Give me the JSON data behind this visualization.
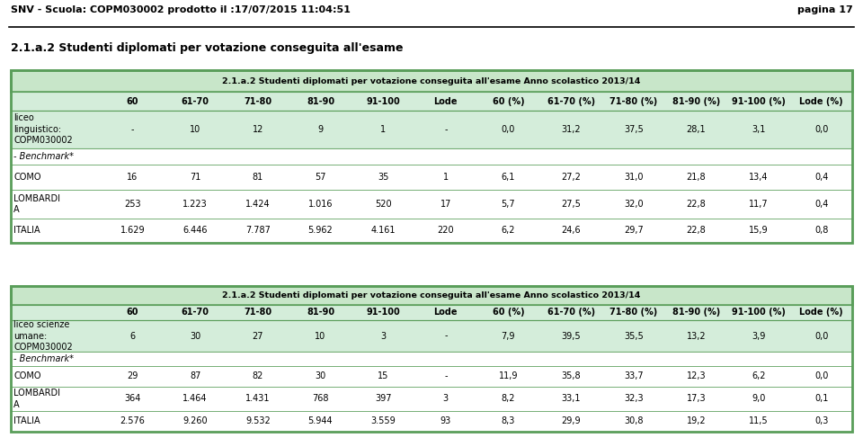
{
  "header_text": "SNV - Scuola: COPM030002 prodotto il :17/07/2015 11:04:51",
  "page_text": "pagina 17",
  "section_title": "2.1.a.2 Studenti diplomati per votazione conseguita all'esame",
  "table_title": "2.1.a.2 Studenti diplomati per votazione conseguita all'esame Anno scolastico 2013/14",
  "col_headers": [
    "60",
    "61-70",
    "71-80",
    "81-90",
    "91-100",
    "Lode",
    "60 (%)",
    "61-70 (%)",
    "71-80 (%)",
    "81-90 (%)",
    "91-100 (%)",
    "Lode (%)"
  ],
  "table1_rows": [
    {
      "label": "liceo\nlinguistico:\nCOPM030002",
      "values": [
        "-",
        "10",
        "12",
        "9",
        "1",
        "-",
        "0,0",
        "31,2",
        "37,5",
        "28,1",
        "3,1",
        "0,0"
      ],
      "type": "school"
    },
    {
      "label": "- Benchmark*",
      "values": [],
      "type": "benchmark"
    },
    {
      "label": "COMO",
      "values": [
        "16",
        "71",
        "81",
        "57",
        "35",
        "1",
        "6,1",
        "27,2",
        "31,0",
        "21,8",
        "13,4",
        "0,4"
      ],
      "type": "data"
    },
    {
      "label": "LOMBARDI\nA",
      "values": [
        "253",
        "1.223",
        "1.424",
        "1.016",
        "520",
        "17",
        "5,7",
        "27,5",
        "32,0",
        "22,8",
        "11,7",
        "0,4"
      ],
      "type": "data"
    },
    {
      "label": "ITALIA",
      "values": [
        "1.629",
        "6.446",
        "7.787",
        "5.962",
        "4.161",
        "220",
        "6,2",
        "24,6",
        "29,7",
        "22,8",
        "15,9",
        "0,8"
      ],
      "type": "data"
    }
  ],
  "table2_rows": [
    {
      "label": "liceo scienze\numane:\nCOPM030002",
      "values": [
        "6",
        "30",
        "27",
        "10",
        "3",
        "-",
        "7,9",
        "39,5",
        "35,5",
        "13,2",
        "3,9",
        "0,0"
      ],
      "type": "school"
    },
    {
      "label": "- Benchmark*",
      "values": [],
      "type": "benchmark"
    },
    {
      "label": "COMO",
      "values": [
        "29",
        "87",
        "82",
        "30",
        "15",
        "-",
        "11,9",
        "35,8",
        "33,7",
        "12,3",
        "6,2",
        "0,0"
      ],
      "type": "data"
    },
    {
      "label": "LOMBARDI\nA",
      "values": [
        "364",
        "1.464",
        "1.431",
        "768",
        "397",
        "3",
        "8,2",
        "33,1",
        "32,3",
        "17,3",
        "9,0",
        "0,1"
      ],
      "type": "data"
    },
    {
      "label": "ITALIA",
      "values": [
        "2.576",
        "9.260",
        "9.532",
        "5.944",
        "3.559",
        "93",
        "8,3",
        "29,9",
        "30,8",
        "19,2",
        "11,5",
        "0,3"
      ],
      "type": "data"
    }
  ],
  "title_bg": "#c8e6c9",
  "header_bg": "#d4edda",
  "school_bg": "#d4edda",
  "benchmark_bg": "#ffffff",
  "data_bg": "#ffffff",
  "border_color": "#5a9e5a",
  "inner_line_color": "#a0c8a0",
  "font_size": 7.0,
  "title_font_size": 6.8,
  "header_font_size": 7.0
}
